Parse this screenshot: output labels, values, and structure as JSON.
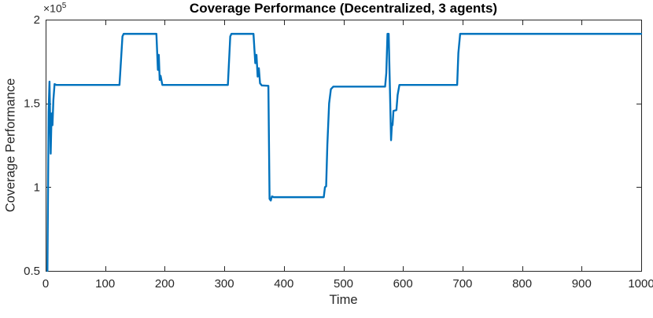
{
  "figure": {
    "offset_base": "×10",
    "offset_exp": "5"
  },
  "chart_data": {
    "type": "line",
    "title": "Coverage Performance (Decentralized, 3 agents)",
    "xlabel": "Time",
    "ylabel": "Coverage Performance",
    "y_unit_multiplier": "×10^5",
    "xlim": [
      0,
      1000
    ],
    "ylim": [
      0.5,
      2
    ],
    "xticks": [
      0,
      100,
      200,
      300,
      400,
      500,
      600,
      700,
      800,
      900,
      1000
    ],
    "xtick_labels": [
      "0",
      "100",
      "200",
      "300",
      "400",
      "500",
      "600",
      "700",
      "800",
      "900",
      "1000"
    ],
    "yticks": [
      0.5,
      1,
      1.5,
      2
    ],
    "ytick_labels": [
      "0.5",
      "1",
      "1.5",
      "2"
    ],
    "grid": false,
    "legend": null,
    "line_color": "#0072BD",
    "axis_color": "#262626",
    "line_width": 2.4,
    "series": [
      {
        "name": "coverage-performance",
        "x": [
          3,
          5,
          6.5,
          8.5,
          10,
          11.5,
          13,
          15,
          18,
          124,
          129,
          131,
          186,
          188.5,
          190,
          191.5,
          193,
          196,
          306,
          310,
          312,
          349,
          352,
          354,
          356,
          358,
          360,
          363,
          374,
          376,
          378,
          380,
          383,
          467,
          469,
          471,
          473,
          476,
          479,
          483,
          570,
          572,
          574,
          576,
          578,
          580,
          581.5,
          582.5,
          584,
          589,
          591,
          594,
          691,
          693,
          696,
          1000
        ],
        "y": [
          0.5,
          1.45,
          1.63,
          1.2,
          1.44,
          1.37,
          1.52,
          1.615,
          1.61,
          1.61,
          1.9,
          1.915,
          1.915,
          1.7,
          1.79,
          1.64,
          1.665,
          1.61,
          1.61,
          1.9,
          1.915,
          1.915,
          1.74,
          1.79,
          1.66,
          1.71,
          1.62,
          1.607,
          1.605,
          0.93,
          0.92,
          0.945,
          0.94,
          0.94,
          1.0,
          1.005,
          1.25,
          1.5,
          1.585,
          1.6,
          1.6,
          1.68,
          1.915,
          1.915,
          1.6,
          1.28,
          1.38,
          1.37,
          1.455,
          1.46,
          1.55,
          1.61,
          1.61,
          1.8,
          1.915,
          1.915
        ]
      }
    ]
  }
}
